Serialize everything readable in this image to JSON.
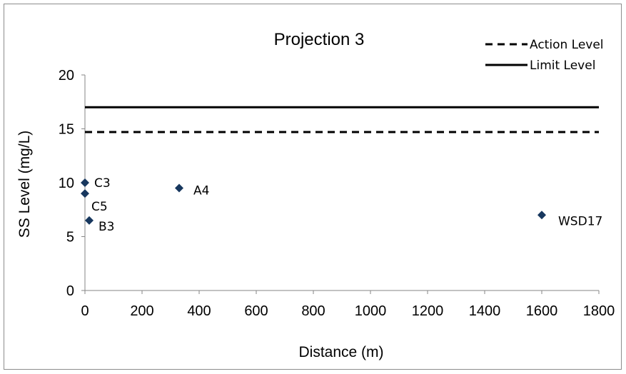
{
  "chart_data": {
    "type": "scatter",
    "title": "Projection 3",
    "xlabel": "Distance (m)",
    "ylabel": "SS Level (mg/L)",
    "xlim": [
      0,
      1800
    ],
    "ylim": [
      0,
      20
    ],
    "x_ticks": [
      "0",
      "200",
      "400",
      "600",
      "800",
      "1000",
      "1200",
      "1400",
      "1600",
      "1800"
    ],
    "y_ticks": [
      "0",
      "5",
      "10",
      "15",
      "20"
    ],
    "grid": false,
    "legend_position": "top-right",
    "marker_color": "#17375e",
    "points": [
      {
        "label": "C3",
        "x": 0,
        "y": 10
      },
      {
        "label": "C5",
        "x": 0,
        "y": 9
      },
      {
        "label": "B3",
        "x": 15,
        "y": 6.5
      },
      {
        "label": "A4",
        "x": 330,
        "y": 9.5
      },
      {
        "label": "WSD17",
        "x": 1600,
        "y": 7
      }
    ],
    "reference_lines": [
      {
        "name": "Action Level",
        "y": 14.7,
        "style": "dashed",
        "color": "#000000"
      },
      {
        "name": "Limit Level",
        "y": 17,
        "style": "solid",
        "color": "#000000"
      }
    ]
  }
}
